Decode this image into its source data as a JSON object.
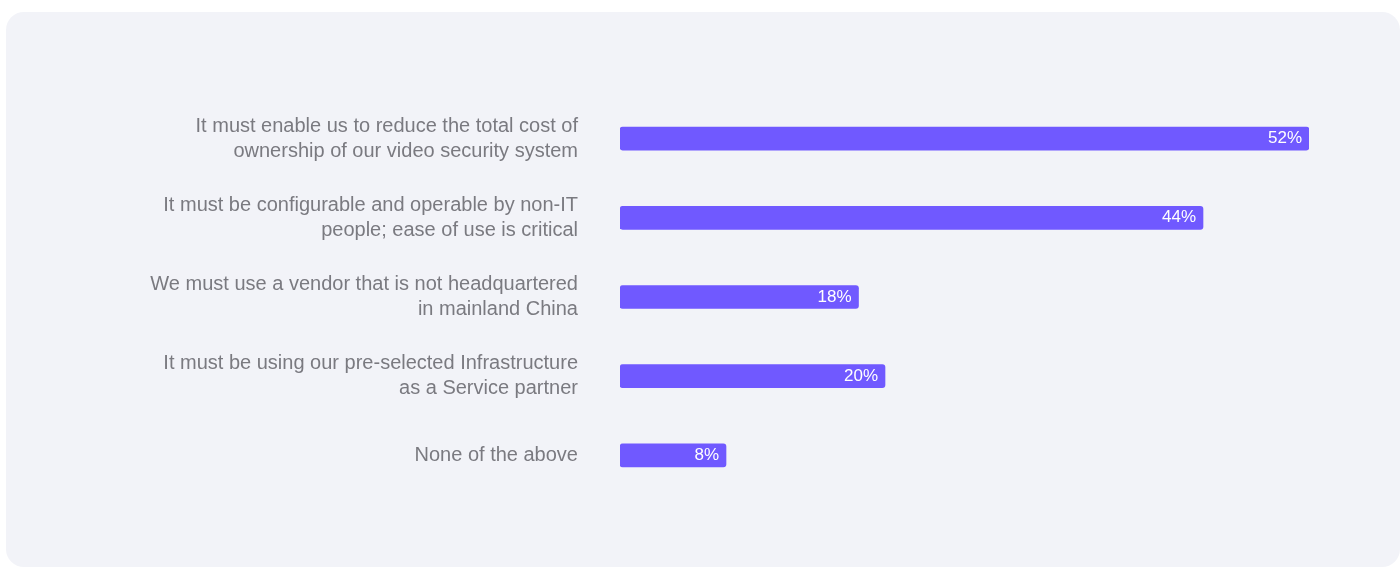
{
  "chart_data": {
    "type": "bar",
    "orientation": "horizontal",
    "categories": [
      "It must enable us to reduce the total cost of ownership of our video security system",
      "It must be configurable and operable by non-IT people; ease of use is critical",
      "We must use a vendor that is not headquartered in mainland China",
      "It must be using our pre-selected Infrastructure as a Service partner",
      "None of the above"
    ],
    "values": [
      52,
      44,
      18,
      20,
      8
    ],
    "value_labels": [
      "52%",
      "44%",
      "18%",
      "20%",
      "8%"
    ],
    "color": "#7059ff",
    "data_labels": false
  }
}
